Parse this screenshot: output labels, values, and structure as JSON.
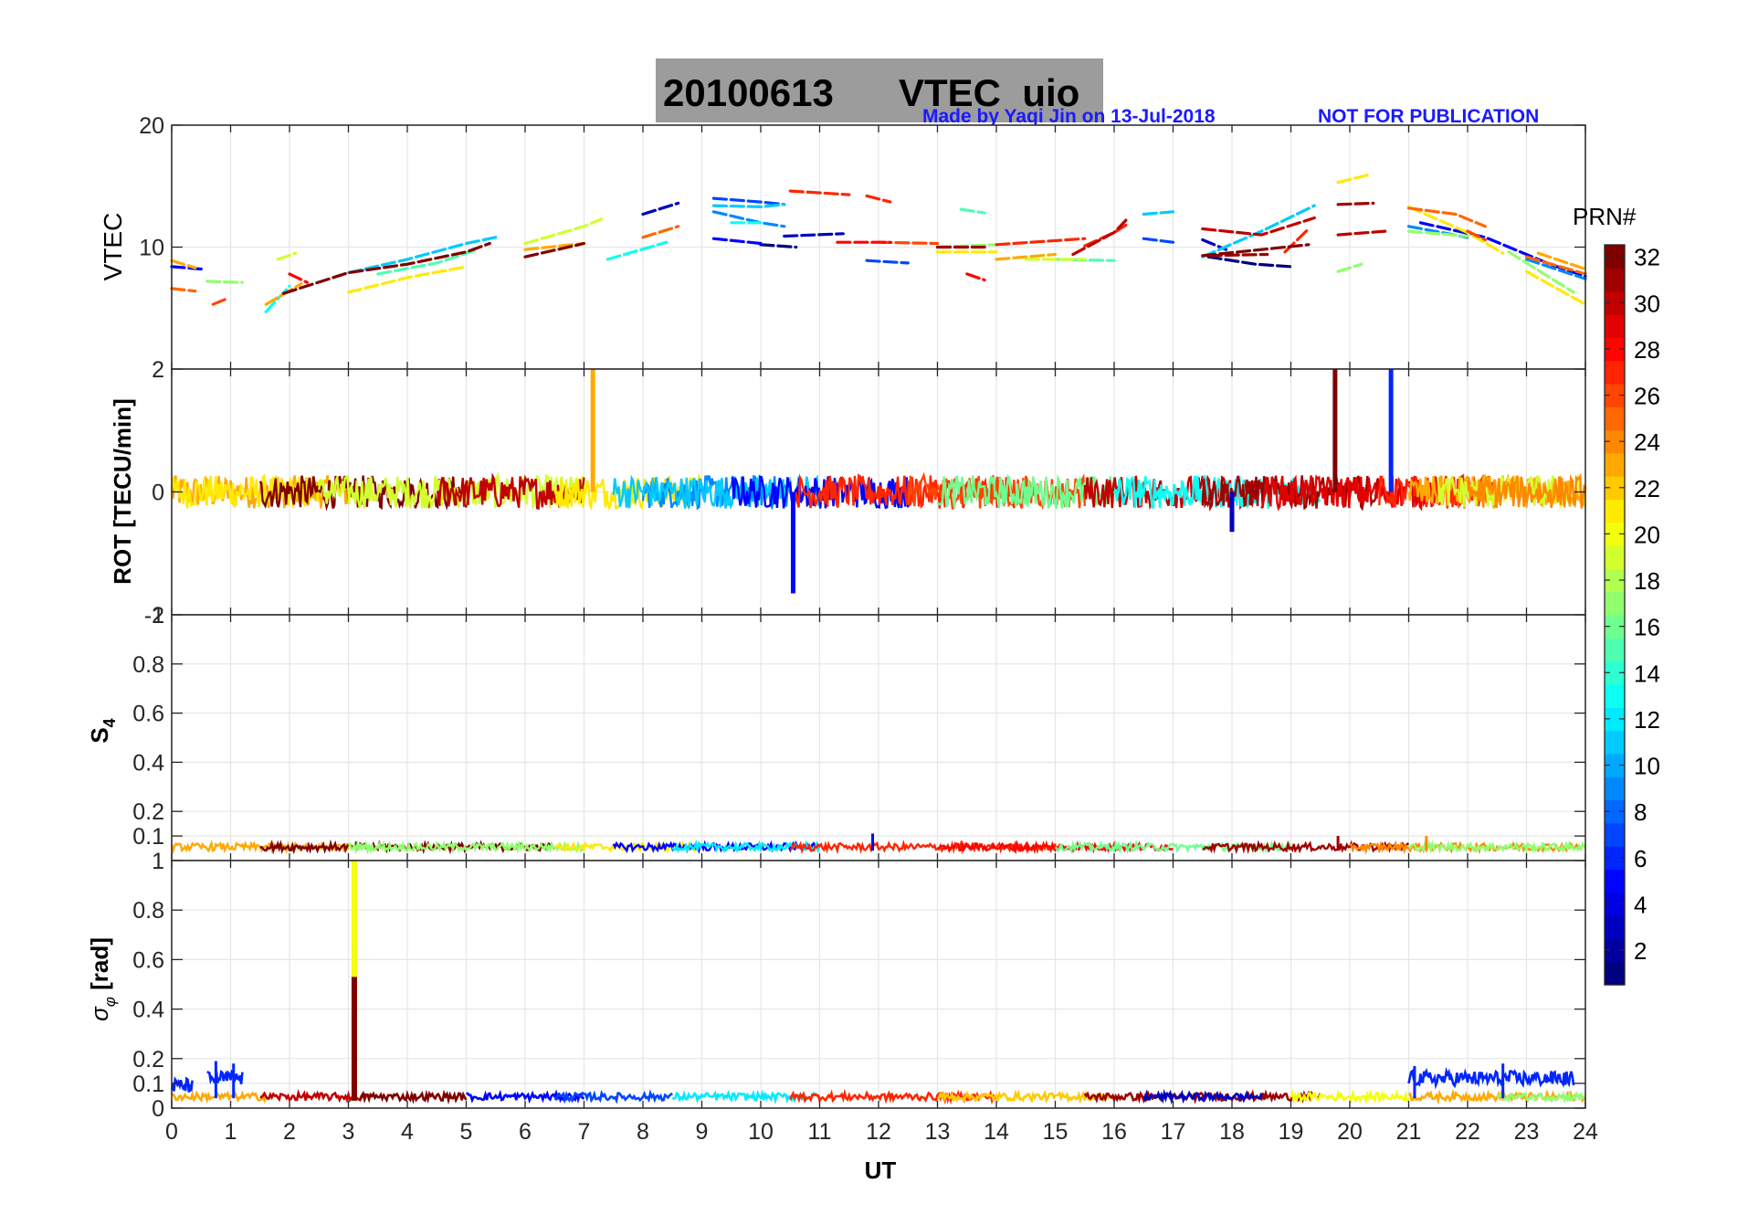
{
  "title": {
    "date": "20100613",
    "label": "VTEC  uio",
    "bg": "#9c9c9c"
  },
  "credit": {
    "made_by": "Made by Yaqi Jin on 13-Jul-2018",
    "notice": "NOT FOR PUBLICATION",
    "color": "#1a1aff"
  },
  "xaxis": {
    "label": "UT",
    "range": [
      0,
      24
    ],
    "ticks": [
      "0",
      "1",
      "2",
      "3",
      "4",
      "5",
      "6",
      "7",
      "8",
      "9",
      "10",
      "11",
      "12",
      "13",
      "14",
      "15",
      "16",
      "17",
      "18",
      "19",
      "20",
      "21",
      "22",
      "23",
      "24"
    ]
  },
  "colorbar": {
    "label": "PRN#",
    "range": [
      1,
      32
    ],
    "colormap": "jet",
    "ticks": [
      "2",
      "4",
      "6",
      "8",
      "10",
      "12",
      "14",
      "16",
      "18",
      "20",
      "22",
      "24",
      "26",
      "28",
      "30",
      "32"
    ]
  },
  "chart_data": [
    {
      "type": "line",
      "panel": "vtec",
      "ylabel": "VTEC",
      "ylim": [
        0,
        20
      ],
      "yticks": [
        "10",
        "20"
      ],
      "grid": true,
      "series": [
        {
          "prn": 1,
          "segments": [
            [
              [
                10.0,
                10.2
              ],
              [
                10.6,
                10.0
              ]
            ],
            [
              [
                17.6,
                9.2
              ],
              [
                18.4,
                8.6
              ],
              [
                19.0,
                8.4
              ]
            ]
          ]
        },
        {
          "prn": 3,
          "segments": [
            [
              [
                8.0,
                12.7
              ],
              [
                8.6,
                13.6
              ]
            ],
            [
              [
                10.4,
                10.9
              ],
              [
                11.4,
                11.1
              ]
            ],
            [
              [
                17.5,
                10.6
              ],
              [
                17.9,
                9.8
              ]
            ]
          ]
        },
        {
          "prn": 5,
          "segments": [
            [
              [
                0.0,
                8.4
              ],
              [
                0.5,
                8.2
              ]
            ],
            [
              [
                9.2,
                10.7
              ],
              [
                10.0,
                10.3
              ]
            ],
            [
              [
                21.2,
                12.0
              ],
              [
                22.3,
                10.8
              ],
              [
                23.4,
                8.6
              ],
              [
                24.0,
                7.6
              ]
            ]
          ]
        },
        {
          "prn": 7,
          "segments": [
            [
              [
                9.2,
                14.0
              ],
              [
                10.0,
                13.7
              ],
              [
                10.4,
                13.5
              ]
            ],
            [
              [
                11.8,
                8.9
              ],
              [
                12.5,
                8.7
              ]
            ],
            [
              [
                16.5,
                10.7
              ],
              [
                17.0,
                10.4
              ]
            ]
          ]
        },
        {
          "prn": 9,
          "segments": [
            [
              [
                9.2,
                12.9
              ],
              [
                10.0,
                12.0
              ],
              [
                10.4,
                11.7
              ]
            ],
            [
              [
                21.0,
                11.7
              ],
              [
                22.0,
                10.8
              ]
            ],
            [
              [
                23.0,
                9.0
              ],
              [
                24.0,
                7.4
              ]
            ]
          ]
        },
        {
          "prn": 11,
          "segments": [
            [
              [
                3.0,
                7.9
              ],
              [
                4.0,
                9.0
              ],
              [
                5.0,
                10.3
              ],
              [
                5.5,
                10.8
              ]
            ],
            [
              [
                9.2,
                13.4
              ],
              [
                10.0,
                13.3
              ],
              [
                10.4,
                13.5
              ]
            ],
            [
              [
                17.5,
                9.2
              ],
              [
                18.5,
                11.3
              ],
              [
                19.4,
                13.4
              ]
            ],
            [
              [
                16.5,
                12.7
              ],
              [
                17.0,
                12.9
              ]
            ]
          ]
        },
        {
          "prn": 13,
          "segments": [
            [
              [
                1.6,
                4.7
              ],
              [
                2.0,
                6.8
              ]
            ],
            [
              [
                7.4,
                9.0
              ],
              [
                8.4,
                10.4
              ]
            ],
            [
              [
                9.5,
                12.0
              ],
              [
                10.0,
                12.0
              ]
            ]
          ]
        },
        {
          "prn": 15,
          "segments": [
            [
              [
                3.5,
                7.8
              ],
              [
                4.5,
                8.7
              ],
              [
                5.2,
                9.8
              ]
            ],
            [
              [
                13.4,
                13.1
              ],
              [
                13.8,
                12.8
              ]
            ],
            [
              [
                15.0,
                9.0
              ],
              [
                16.0,
                8.9
              ]
            ]
          ]
        },
        {
          "prn": 17,
          "segments": [
            [
              [
                0.6,
                7.2
              ],
              [
                1.2,
                7.1
              ]
            ],
            [
              [
                13.0,
                10.0
              ],
              [
                14.0,
                10.2
              ]
            ],
            [
              [
                19.8,
                8.0
              ],
              [
                20.2,
                8.6
              ]
            ],
            [
              [
                21.0,
                11.3
              ],
              [
                22.0,
                10.9
              ]
            ],
            [
              [
                22.7,
                9.6
              ],
              [
                23.8,
                6.3
              ]
            ]
          ]
        },
        {
          "prn": 19,
          "segments": [
            [
              [
                1.8,
                9.0
              ],
              [
                2.1,
                9.5
              ]
            ],
            [
              [
                6.0,
                10.3
              ],
              [
                7.0,
                11.7
              ],
              [
                7.3,
                12.3
              ]
            ],
            [
              [
                14.5,
                9.0
              ],
              [
                15.5,
                9.0
              ]
            ]
          ]
        },
        {
          "prn": 21,
          "segments": [
            [
              [
                3.0,
                6.3
              ],
              [
                4.0,
                7.5
              ],
              [
                5.0,
                8.4
              ]
            ],
            [
              [
                13.0,
                9.6
              ],
              [
                14.0,
                9.6
              ]
            ],
            [
              [
                19.8,
                15.3
              ],
              [
                20.3,
                15.9
              ]
            ],
            [
              [
                21.0,
                13.3
              ],
              [
                22.0,
                11.2
              ],
              [
                22.6,
                9.5
              ]
            ],
            [
              [
                23.0,
                8.0
              ],
              [
                24.0,
                5.3
              ]
            ]
          ]
        },
        {
          "prn": 23,
          "segments": [
            [
              [
                0.0,
                8.9
              ],
              [
                0.4,
                8.3
              ]
            ],
            [
              [
                1.6,
                5.3
              ],
              [
                2.2,
                7.0
              ]
            ],
            [
              [
                6.0,
                9.8
              ],
              [
                7.0,
                10.3
              ]
            ],
            [
              [
                14.0,
                9.0
              ],
              [
                15.0,
                9.4
              ]
            ],
            [
              [
                23.2,
                9.5
              ],
              [
                24.0,
                8.2
              ]
            ]
          ]
        },
        {
          "prn": 25,
          "segments": [
            [
              [
                0.0,
                6.6
              ],
              [
                0.4,
                6.4
              ]
            ],
            [
              [
                8.0,
                10.8
              ],
              [
                8.6,
                11.7
              ]
            ],
            [
              [
                21.0,
                13.2
              ],
              [
                21.8,
                12.7
              ],
              [
                22.3,
                11.7
              ]
            ],
            [
              [
                23.0,
                9.2
              ],
              [
                24.0,
                7.8
              ]
            ]
          ]
        },
        {
          "prn": 26,
          "segments": [
            [
              [
                0.7,
                5.3
              ],
              [
                0.9,
                5.7
              ]
            ],
            [
              [
                12.0,
                10.4
              ],
              [
                13.0,
                10.3
              ]
            ],
            [
              [
                22.0,
                11.3
              ],
              [
                22.3,
                10.6
              ]
            ]
          ]
        },
        {
          "prn": 27,
          "segments": [
            [
              [
                10.5,
                14.6
              ],
              [
                11.5,
                14.3
              ]
            ],
            [
              [
                11.8,
                14.2
              ],
              [
                12.2,
                13.7
              ]
            ],
            [
              [
                14.0,
                10.2
              ],
              [
                15.5,
                10.7
              ]
            ],
            [
              [
                15.5,
                10.1
              ],
              [
                16.0,
                11.2
              ],
              [
                16.2,
                11.8
              ]
            ],
            [
              [
                18.9,
                9.6
              ],
              [
                19.3,
                11.5
              ]
            ]
          ]
        },
        {
          "prn": 28,
          "segments": [
            [
              [
                2.0,
                7.8
              ],
              [
                2.3,
                7.1
              ]
            ],
            [
              [
                11.3,
                10.4
              ],
              [
                12.2,
                10.4
              ]
            ],
            [
              [
                13.5,
                7.8
              ],
              [
                13.8,
                7.3
              ]
            ]
          ]
        },
        {
          "prn": 30,
          "segments": [
            [
              [
                15.3,
                9.4
              ],
              [
                16.0,
                11.2
              ],
              [
                16.2,
                12.2
              ]
            ],
            [
              [
                17.5,
                11.5
              ],
              [
                18.5,
                11.0
              ],
              [
                19.4,
                12.4
              ]
            ],
            [
              [
                19.8,
                11.0
              ],
              [
                20.6,
                11.3
              ]
            ]
          ]
        },
        {
          "prn": 31,
          "segments": [
            [
              [
                13.0,
                10.0
              ],
              [
                13.8,
                10.0
              ]
            ],
            [
              [
                17.6,
                9.3
              ],
              [
                18.6,
                9.4
              ]
            ],
            [
              [
                19.8,
                13.5
              ],
              [
                20.4,
                13.6
              ]
            ]
          ]
        },
        {
          "prn": 32,
          "segments": [
            [
              [
                1.9,
                6.2
              ],
              [
                3.0,
                7.9
              ],
              [
                4.0,
                8.6
              ],
              [
                5.0,
                9.6
              ],
              [
                5.4,
                10.3
              ]
            ],
            [
              [
                6.0,
                9.2
              ],
              [
                7.0,
                10.3
              ]
            ],
            [
              [
                17.5,
                9.3
              ],
              [
                18.5,
                9.8
              ],
              [
                19.3,
                10.2
              ]
            ]
          ]
        }
      ]
    },
    {
      "type": "line",
      "panel": "rot",
      "ylabel": "ROT [TECU/min]",
      "ylim": [
        -2,
        2
      ],
      "yticks": [
        "-2",
        "0",
        "2"
      ],
      "grid": true,
      "noise_amplitude": 0.3,
      "spikes": [
        {
          "x": 7.15,
          "y": 2.0,
          "prn": 23
        },
        {
          "x": 10.55,
          "y": -1.65,
          "prn": 5
        },
        {
          "x": 18.0,
          "y": -0.65,
          "prn": 3
        },
        {
          "x": 19.75,
          "y": 2.0,
          "prn": 32
        },
        {
          "x": 20.7,
          "y": 2.0,
          "prn": 6
        }
      ]
    },
    {
      "type": "line",
      "panel": "s4",
      "ylabel": "S4",
      "ylim": [
        0,
        1
      ],
      "yticks": [
        "0.1",
        "0.2",
        "0.4",
        "0.6",
        "0.8",
        "1"
      ],
      "grid": true,
      "baseline": 0.04,
      "noise_amplitude": 0.05,
      "peaks": [
        {
          "x": 11.9,
          "y": 0.11,
          "prn": 5
        },
        {
          "x": 19.8,
          "y": 0.1,
          "prn": 31
        },
        {
          "x": 21.3,
          "y": 0.1,
          "prn": 24
        }
      ]
    },
    {
      "type": "line",
      "panel": "sigma_phi",
      "ylabel": "σφ [rad]",
      "ylim": [
        0,
        1
      ],
      "yticks": [
        "0",
        "0.1",
        "0.2",
        "0.4",
        "0.6",
        "0.8",
        "1"
      ],
      "grid": true,
      "baseline": 0.04,
      "noise_amplitude": 0.03,
      "spikes": [
        {
          "x": 3.1,
          "y": 1.0,
          "prn": 20
        },
        {
          "x": 3.1,
          "y": 0.53,
          "prn": 32
        }
      ],
      "peaks": [
        {
          "x": 0.75,
          "y": 0.19,
          "prn": 6
        },
        {
          "x": 1.05,
          "y": 0.18,
          "prn": 6
        },
        {
          "x": 21.1,
          "y": 0.17,
          "prn": 6
        },
        {
          "x": 22.6,
          "y": 0.18,
          "prn": 6
        }
      ]
    }
  ]
}
